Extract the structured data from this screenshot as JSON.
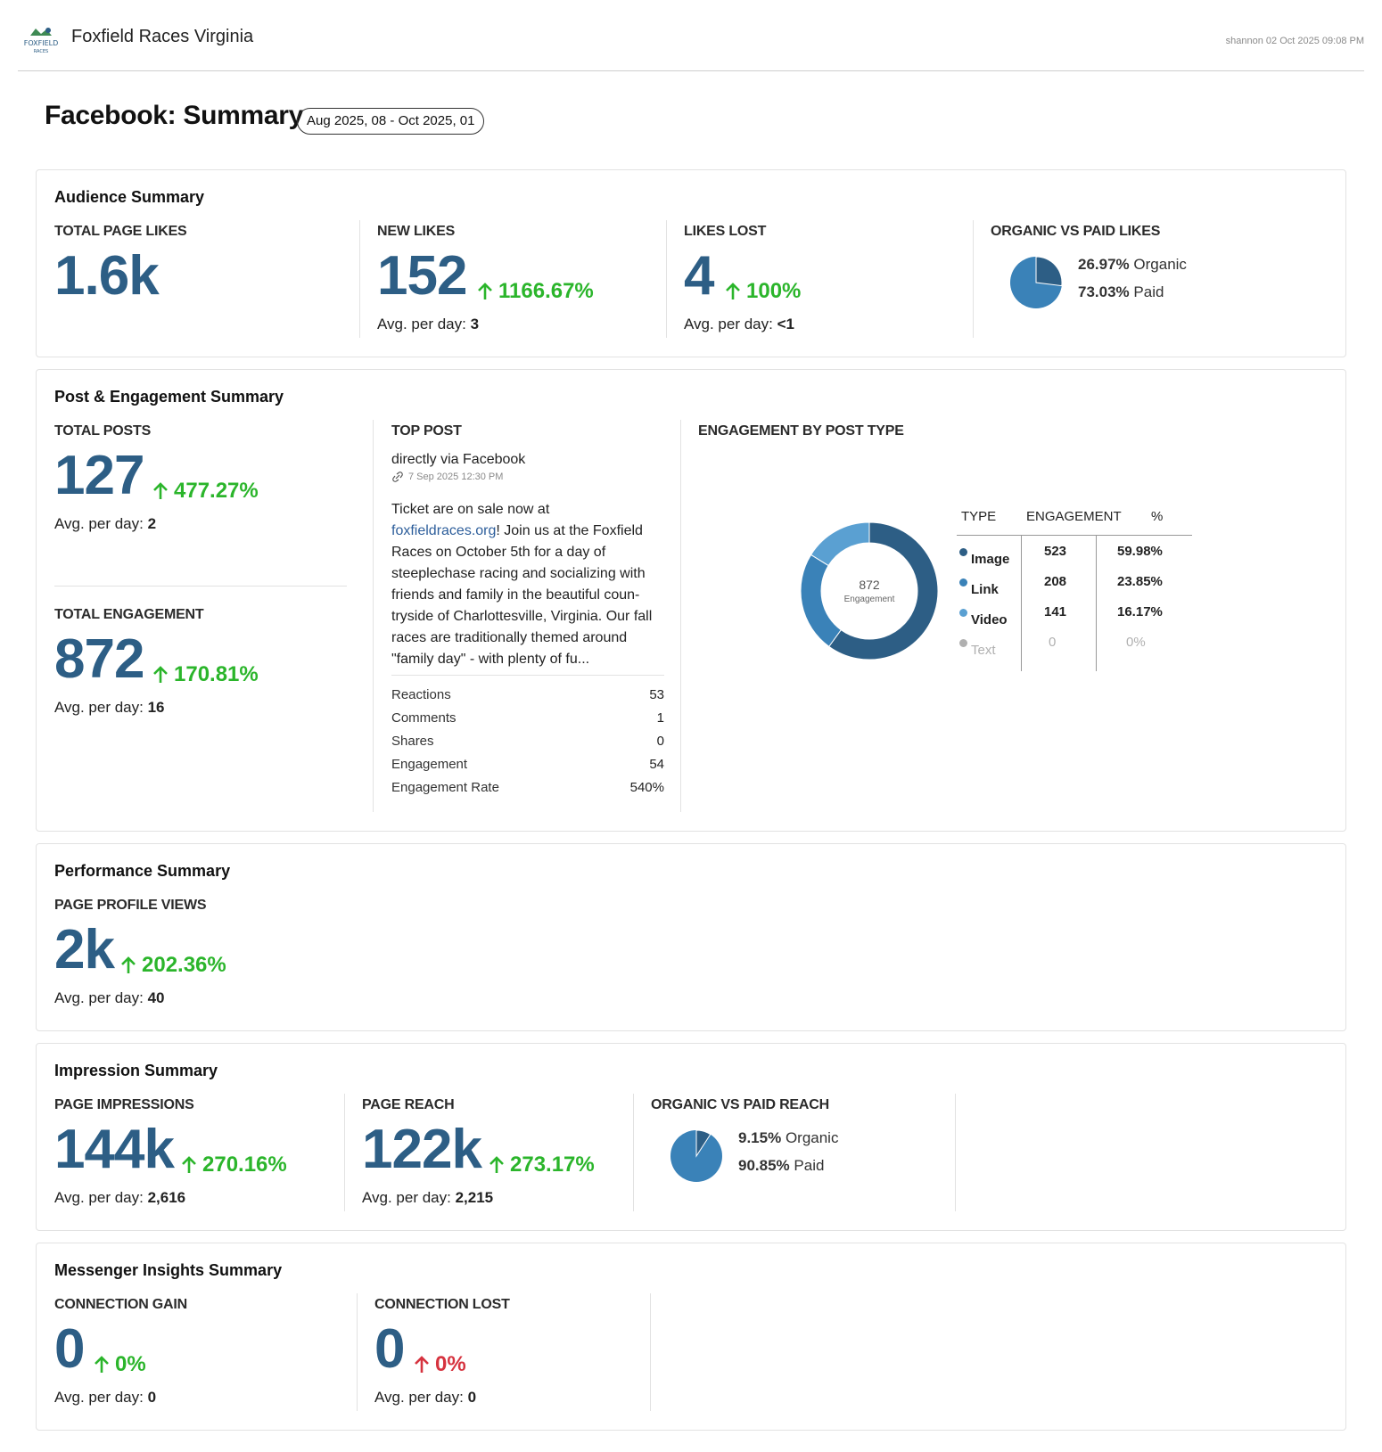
{
  "header": {
    "brand": "Foxfield Races Virginia",
    "logo_text": "FOXFIELD",
    "logo_subtext": "RACES",
    "stamp": "shannon 02 Oct 2025 09:08 PM"
  },
  "page": {
    "title": "Facebook: Summary",
    "date_range": "Aug 2025, 08 - Oct 2025, 01"
  },
  "colors": {
    "big_number": "#2d5e85",
    "positive": "#2bb52b",
    "negative": "#d6333f",
    "pie_dark": "#2d5e85",
    "pie_light": "#3a82b8"
  },
  "audience": {
    "title": "Audience Summary",
    "total_likes": {
      "label": "TOTAL PAGE LIKES",
      "value": "1.6k"
    },
    "new_likes": {
      "label": "NEW LIKES",
      "value": "152",
      "delta": "1166.67%",
      "avg_label": "Avg. per day:",
      "avg": "3"
    },
    "likes_lost": {
      "label": "LIKES LOST",
      "value": "4",
      "delta": "100%",
      "avg_label": "Avg. per day:",
      "avg": "<1"
    },
    "organic_paid": {
      "label": "ORGANIC VS PAID LIKES",
      "organic_pct": "26.97%",
      "organic_label": "Organic",
      "paid_pct": "73.03%",
      "paid_label": "Paid",
      "organic_share": 0.2697
    }
  },
  "engagement": {
    "title": "Post & Engagement Summary",
    "total_posts": {
      "label": "TOTAL POSTS",
      "value": "127",
      "delta": "477.27%",
      "avg_label": "Avg. per day:",
      "avg": "2"
    },
    "total_engagement": {
      "label": "TOTAL ENGAGEMENT",
      "value": "872",
      "delta": "170.81%",
      "avg_label": "Avg. per day:",
      "avg": "16"
    },
    "top_post": {
      "label": "TOP POST",
      "source": "directly via Facebook",
      "date": "7 Sep 2025 12:30 PM",
      "body_pre": "Ticket are on sale now at ",
      "body_link": "foxfieldraces.org",
      "body_post": "! Join us at the Foxfield Races on October 5th for a day of steeplechase racing and socializing with friends and family in the beautiful coun-tryside of Charlottesville, Virginia. Our fall races are traditionally themed around \"family day\" - with plenty of fu...",
      "stats": [
        {
          "label": "Reactions",
          "value": "53"
        },
        {
          "label": "Comments",
          "value": "1"
        },
        {
          "label": "Shares",
          "value": "0"
        },
        {
          "label": "Engagement",
          "value": "54"
        },
        {
          "label": "Engagement Rate",
          "value": "540%"
        }
      ]
    },
    "by_type": {
      "label": "ENGAGEMENT BY POST TYPE",
      "center_value": "872",
      "center_label": "Engagement",
      "col_type": "TYPE",
      "col_engagement": "ENGAGEMENT",
      "col_pct": "%",
      "rows": [
        {
          "type": "Image",
          "engagement": "523",
          "pct": "59.98%",
          "color": "#2d5e85"
        },
        {
          "type": "Link",
          "engagement": "208",
          "pct": "23.85%",
          "color": "#3a82b8"
        },
        {
          "type": "Video",
          "engagement": "141",
          "pct": "16.17%",
          "color": "#5aa0d2"
        },
        {
          "type": "Text",
          "engagement": "0",
          "pct": "0%",
          "color": "#b0b0b0"
        }
      ]
    }
  },
  "performance": {
    "title": "Performance Summary",
    "profile_views": {
      "label": "PAGE PROFILE VIEWS",
      "value": "2k",
      "delta": "202.36%",
      "avg_label": "Avg. per day:",
      "avg": "40"
    }
  },
  "impression": {
    "title": "Impression Summary",
    "impressions": {
      "label": "PAGE IMPRESSIONS",
      "value": "144k",
      "delta": "270.16%",
      "avg_label": "Avg. per day:",
      "avg": "2,616"
    },
    "reach": {
      "label": "PAGE REACH",
      "value": "122k",
      "delta": "273.17%",
      "avg_label": "Avg. per day:",
      "avg": "2,215"
    },
    "organic_paid": {
      "label": "ORGANIC VS PAID REACH",
      "organic_pct": "9.15%",
      "organic_label": "Organic",
      "paid_pct": "90.85%",
      "paid_label": "Paid",
      "organic_share": 0.0915
    }
  },
  "messenger": {
    "title": "Messenger Insights Summary",
    "gain": {
      "label": "CONNECTION GAIN",
      "value": "0",
      "delta": "0%",
      "avg_label": "Avg. per day:",
      "avg": "0"
    },
    "lost": {
      "label": "CONNECTION LOST",
      "value": "0",
      "delta": "0%",
      "avg_label": "Avg. per day:",
      "avg": "0"
    }
  }
}
